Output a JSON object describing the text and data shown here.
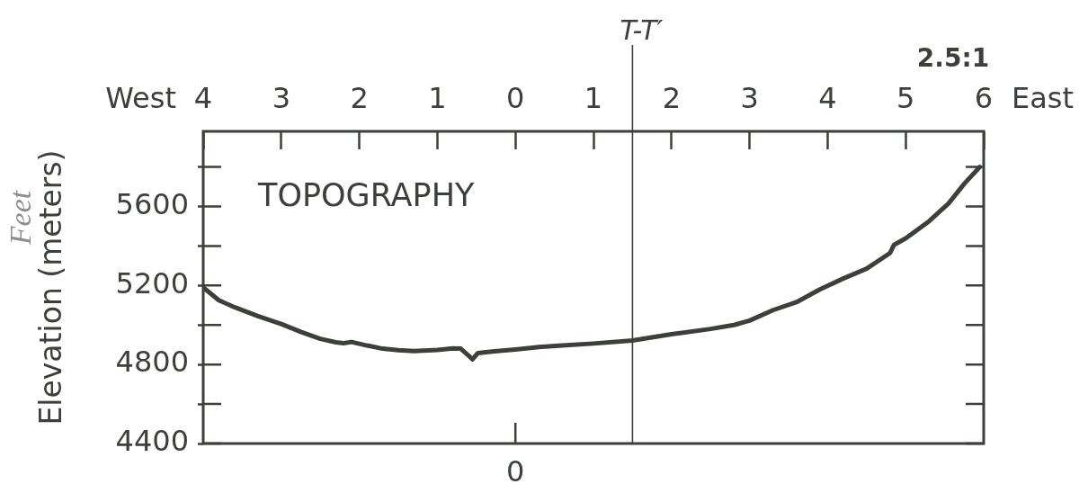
{
  "chart_data": {
    "type": "line",
    "title": "TOPOGRAPHY",
    "ylabel": "Elevation (meters)",
    "x": [
      -4,
      -3.8,
      -3.6,
      -3.3,
      -3,
      -2.75,
      -2.5,
      -2.3,
      -2.2,
      -2.1,
      -1.9,
      -1.7,
      -1.5,
      -1.3,
      -1,
      -0.8,
      -0.7,
      -0.6,
      -0.55,
      -0.48,
      -0.3,
      0,
      0.3,
      0.6,
      1,
      1.5,
      2,
      2.5,
      2.8,
      3,
      3.3,
      3.6,
      3.9,
      4.2,
      4.5,
      4.8,
      4.85,
      5,
      5.3,
      5.55,
      5.75,
      5.95
    ],
    "series": [
      {
        "color": "#3b403b",
        "values": [
          5190,
          5125,
          5090,
          5045,
          5005,
          4965,
          4930,
          4912,
          4908,
          4914,
          4896,
          4880,
          4872,
          4868,
          4874,
          4882,
          4880,
          4845,
          4826,
          4858,
          4866,
          4876,
          4888,
          4896,
          4906,
          4921,
          4953,
          4980,
          5000,
          5022,
          5075,
          5115,
          5180,
          5235,
          5285,
          5364,
          5405,
          5438,
          5525,
          5615,
          5714,
          5800
        ]
      }
    ],
    "xlim": [
      -4,
      6
    ],
    "xticks": [
      {
        "value": -4,
        "label": "4"
      },
      {
        "value": -3,
        "label": "3"
      },
      {
        "value": -2,
        "label": "2"
      },
      {
        "value": -1,
        "label": "1"
      },
      {
        "value": 0,
        "label": "0"
      },
      {
        "value": 1,
        "label": "1"
      },
      {
        "value": 2,
        "label": "2"
      },
      {
        "value": 3,
        "label": "3"
      },
      {
        "value": 4,
        "label": "4"
      },
      {
        "value": 5,
        "label": "5"
      },
      {
        "value": 6,
        "label": "6"
      }
    ],
    "ylim": [
      4400,
      5980
    ],
    "yticks": [
      {
        "value": 4400,
        "label": "4400"
      },
      {
        "value": 4600,
        "label": null
      },
      {
        "value": 4800,
        "label": "4800"
      },
      {
        "value": 5000,
        "label": null
      },
      {
        "value": 5200,
        "label": "5200"
      },
      {
        "value": 5400,
        "label": null
      },
      {
        "value": 5600,
        "label": "5600"
      },
      {
        "value": 5800,
        "label": null
      }
    ],
    "ref_lines": [
      {
        "axis": "x",
        "value": 1.5,
        "label": "T-T′"
      }
    ],
    "annotations": [
      "West",
      "East",
      "2.5:1",
      "Feet",
      "0"
    ],
    "grid": false,
    "legend": false
  }
}
